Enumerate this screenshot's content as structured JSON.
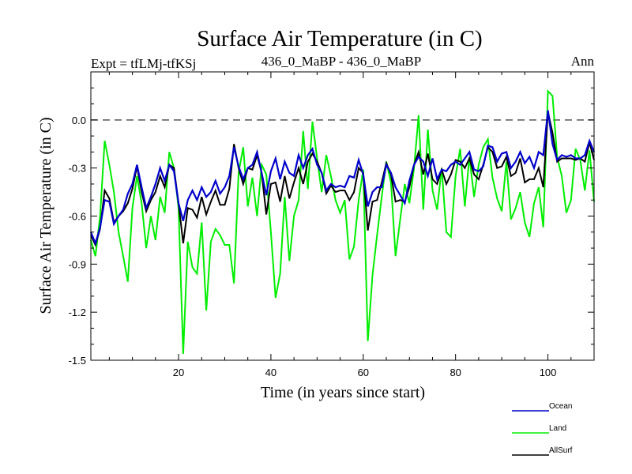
{
  "chart_data": {
    "type": "line",
    "title": "Surface Air Temperature (in C)",
    "subtitle_left": "Expt = tfLMj-tfKSj",
    "subtitle_center": "436_0_MaBP - 436_0_MaBP",
    "subtitle_right": "Ann",
    "xlabel": "Time (in years since start)",
    "ylabel": "Surface Air Temperature (in C)",
    "xlim": [
      1,
      110
    ],
    "ylim": [
      -1.5,
      0.3
    ],
    "x_ticks": [
      20,
      40,
      60,
      80,
      100
    ],
    "x_tick_labels": [
      "20",
      "40",
      "60",
      "80",
      "100"
    ],
    "y_ticks": [
      0.0,
      -0.3,
      -0.6,
      -0.9,
      -1.2,
      -1.5
    ],
    "y_tick_labels": [
      "0.0",
      "-0.3",
      "-0.6",
      "-0.9",
      "-1.2",
      "-1.5"
    ],
    "reference_line": 0.0,
    "legend_position": "bottom-right",
    "x": [
      1,
      2,
      3,
      4,
      5,
      6,
      7,
      8,
      9,
      10,
      11,
      12,
      13,
      14,
      15,
      16,
      17,
      18,
      19,
      20,
      21,
      22,
      23,
      24,
      25,
      26,
      27,
      28,
      29,
      30,
      31,
      32,
      33,
      34,
      35,
      36,
      37,
      38,
      39,
      40,
      41,
      42,
      43,
      44,
      45,
      46,
      47,
      48,
      49,
      50,
      51,
      52,
      53,
      54,
      55,
      56,
      57,
      58,
      59,
      60,
      61,
      62,
      63,
      64,
      65,
      66,
      67,
      68,
      69,
      70,
      71,
      72,
      73,
      74,
      75,
      76,
      77,
      78,
      79,
      80,
      81,
      82,
      83,
      84,
      85,
      86,
      87,
      88,
      89,
      90,
      91,
      92,
      93,
      94,
      95,
      96,
      97,
      98,
      99,
      100,
      101,
      102,
      103,
      104,
      105,
      106,
      107,
      108,
      109,
      110
    ],
    "series": [
      {
        "name": "Ocean",
        "color": "#0000cc",
        "values": [
          -0.7,
          -0.77,
          -0.67,
          -0.5,
          -0.51,
          -0.65,
          -0.6,
          -0.56,
          -0.46,
          -0.4,
          -0.28,
          -0.42,
          -0.55,
          -0.48,
          -0.4,
          -0.3,
          -0.38,
          -0.28,
          -0.32,
          -0.52,
          -0.63,
          -0.5,
          -0.44,
          -0.5,
          -0.42,
          -0.48,
          -0.45,
          -0.38,
          -0.46,
          -0.42,
          -0.35,
          -0.17,
          -0.29,
          -0.37,
          -0.3,
          -0.28,
          -0.2,
          -0.33,
          -0.47,
          -0.32,
          -0.24,
          -0.37,
          -0.26,
          -0.33,
          -0.35,
          -0.22,
          -0.3,
          -0.22,
          -0.18,
          -0.28,
          -0.33,
          -0.44,
          -0.4,
          -0.42,
          -0.41,
          -0.42,
          -0.35,
          -0.36,
          -0.25,
          -0.34,
          -0.54,
          -0.45,
          -0.42,
          -0.42,
          -0.28,
          -0.33,
          -0.42,
          -0.47,
          -0.52,
          -0.38,
          -0.28,
          -0.23,
          -0.26,
          -0.35,
          -0.24,
          -0.37,
          -0.31,
          -0.32,
          -0.28,
          -0.26,
          -0.28,
          -0.24,
          -0.2,
          -0.31,
          -0.32,
          -0.29,
          -0.16,
          -0.17,
          -0.26,
          -0.21,
          -0.2,
          -0.3,
          -0.26,
          -0.2,
          -0.27,
          -0.23,
          -0.3,
          -0.2,
          -0.22,
          0.06,
          -0.15,
          -0.25,
          -0.22,
          -0.23,
          -0.22,
          -0.24,
          -0.24,
          -0.22,
          -0.13,
          -0.2
        ]
      },
      {
        "name": "Land",
        "color": "#00ee00",
        "values": [
          -0.75,
          -0.85,
          -0.6,
          -0.13,
          -0.28,
          -0.45,
          -0.7,
          -0.85,
          -1.01,
          -0.55,
          -0.35,
          -0.52,
          -0.8,
          -0.6,
          -0.75,
          -0.48,
          -0.58,
          -0.2,
          -0.3,
          -0.55,
          -1.46,
          -0.76,
          -0.92,
          -0.96,
          -0.64,
          -1.19,
          -0.76,
          -0.68,
          -0.72,
          -0.78,
          -0.78,
          -1.02,
          -0.33,
          -0.17,
          -0.54,
          -0.36,
          -0.6,
          -0.28,
          -0.34,
          -0.7,
          -1.11,
          -0.96,
          -0.48,
          -0.88,
          -0.6,
          -0.5,
          -0.07,
          -0.43,
          -0.01,
          -0.24,
          -0.45,
          -0.22,
          -0.35,
          -0.5,
          -0.58,
          -0.5,
          -0.87,
          -0.79,
          -0.5,
          -0.31,
          -1.38,
          -0.97,
          -0.72,
          -0.48,
          -0.26,
          -0.39,
          -0.85,
          -0.62,
          -0.4,
          -0.52,
          -0.3,
          0.03,
          -0.56,
          -0.06,
          -0.44,
          -0.56,
          -0.3,
          -0.7,
          -0.73,
          -0.35,
          -0.18,
          -0.54,
          -0.23,
          -0.48,
          -0.28,
          -0.17,
          -0.12,
          -0.36,
          -0.49,
          -0.57,
          -0.26,
          -0.62,
          -0.55,
          -0.45,
          -0.64,
          -0.73,
          -0.52,
          -0.42,
          -0.67,
          0.18,
          0.15,
          -0.23,
          -0.35,
          -0.58,
          -0.5,
          -0.18,
          -0.25,
          -0.44,
          -0.19,
          -0.51
        ]
      },
      {
        "name": "AllSurf",
        "color": "#000000",
        "values": [
          -0.72,
          -0.78,
          -0.68,
          -0.44,
          -0.49,
          -0.64,
          -0.6,
          -0.57,
          -0.52,
          -0.43,
          -0.29,
          -0.45,
          -0.57,
          -0.5,
          -0.45,
          -0.35,
          -0.42,
          -0.28,
          -0.3,
          -0.52,
          -0.77,
          -0.55,
          -0.56,
          -0.61,
          -0.48,
          -0.59,
          -0.51,
          -0.44,
          -0.53,
          -0.53,
          -0.43,
          -0.15,
          -0.3,
          -0.4,
          -0.3,
          -0.31,
          -0.22,
          -0.33,
          -0.59,
          -0.4,
          -0.39,
          -0.51,
          -0.35,
          -0.49,
          -0.39,
          -0.3,
          -0.4,
          -0.26,
          -0.21,
          -0.26,
          -0.33,
          -0.46,
          -0.41,
          -0.45,
          -0.44,
          -0.44,
          -0.5,
          -0.45,
          -0.3,
          -0.33,
          -0.69,
          -0.51,
          -0.5,
          -0.39,
          -0.27,
          -0.34,
          -0.51,
          -0.5,
          -0.51,
          -0.42,
          -0.28,
          -0.2,
          -0.34,
          -0.21,
          -0.37,
          -0.4,
          -0.31,
          -0.4,
          -0.34,
          -0.25,
          -0.26,
          -0.3,
          -0.24,
          -0.34,
          -0.37,
          -0.28,
          -0.17,
          -0.2,
          -0.3,
          -0.29,
          -0.23,
          -0.35,
          -0.33,
          -0.24,
          -0.39,
          -0.37,
          -0.37,
          -0.3,
          -0.42,
          0.05,
          -0.08,
          -0.26,
          -0.24,
          -0.24,
          -0.24,
          -0.25,
          -0.24,
          -0.26,
          -0.14,
          -0.25
        ]
      }
    ]
  }
}
